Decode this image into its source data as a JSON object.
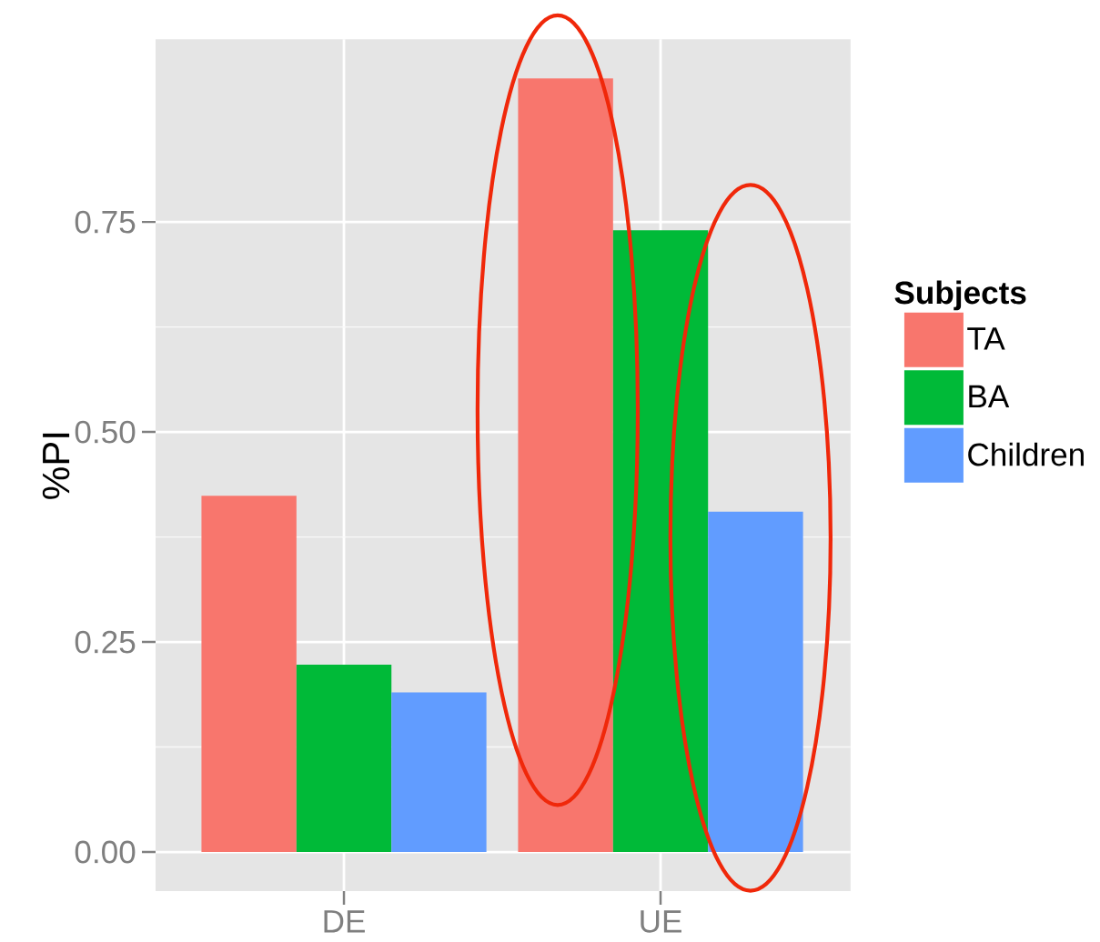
{
  "chart_data": {
    "type": "bar",
    "ylabel": "%PI",
    "legend_title": "Subjects",
    "categories": [
      "DE",
      "UE"
    ],
    "series": [
      {
        "name": "TA",
        "color": "#f8766d",
        "values": [
          0.424,
          0.921
        ]
      },
      {
        "name": "BA",
        "color": "#00ba38",
        "values": [
          0.223,
          0.74
        ]
      },
      {
        "name": "Children",
        "color": "#619cff",
        "values": [
          0.19,
          0.405
        ]
      }
    ],
    "ylim": [
      -0.0465,
      0.9675
    ],
    "yticks": [
      {
        "value": 0,
        "label": "0.00"
      },
      0.25,
      {
        "value": 0.5,
        "label": "0.50"
      },
      0.75
    ],
    "grid": true,
    "legend": "right"
  }
}
